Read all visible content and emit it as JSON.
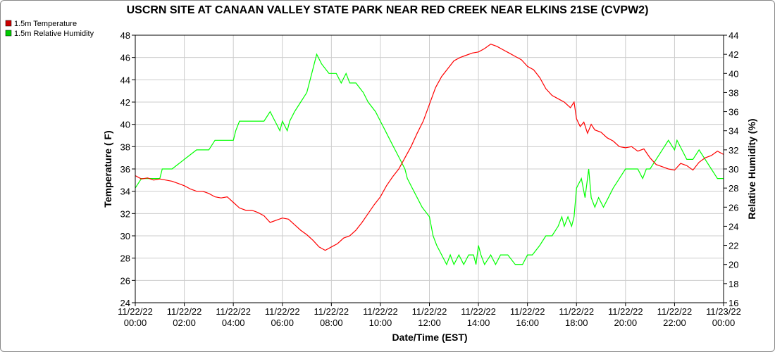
{
  "chart_data": {
    "type": "line",
    "title": "USCRN SITE AT CANAAN VALLEY STATE PARK NEAR RED CREEK NEAR ELKINS 21SE (CVPW2)",
    "xlabel": "Date/Time (EST)",
    "ylabel_left": "Temperature ( F)",
    "ylabel_right": "Relative Humidity (%)",
    "xlim_hours": [
      0,
      24
    ],
    "ylim_left": [
      24,
      48
    ],
    "ylim_right": [
      16,
      44
    ],
    "yticks_left": [
      24,
      26,
      28,
      30,
      32,
      34,
      36,
      38,
      40,
      42,
      44,
      46,
      48
    ],
    "yticks_right": [
      16,
      18,
      20,
      22,
      24,
      26,
      28,
      30,
      32,
      34,
      36,
      38,
      40,
      42,
      44
    ],
    "x_ticks": [
      {
        "hour": 0,
        "date": "11/22/22",
        "time": "00:00"
      },
      {
        "hour": 2,
        "date": "11/22/22",
        "time": "02:00"
      },
      {
        "hour": 4,
        "date": "11/22/22",
        "time": "04:00"
      },
      {
        "hour": 6,
        "date": "11/22/22",
        "time": "06:00"
      },
      {
        "hour": 8,
        "date": "11/22/22",
        "time": "08:00"
      },
      {
        "hour": 10,
        "date": "11/22/22",
        "time": "10:00"
      },
      {
        "hour": 12,
        "date": "11/22/22",
        "time": "12:00"
      },
      {
        "hour": 14,
        "date": "11/22/22",
        "time": "14:00"
      },
      {
        "hour": 16,
        "date": "11/22/22",
        "time": "16:00"
      },
      {
        "hour": 18,
        "date": "11/22/22",
        "time": "18:00"
      },
      {
        "hour": 20,
        "date": "11/22/22",
        "time": "20:00"
      },
      {
        "hour": 22,
        "date": "11/22/22",
        "time": "22:00"
      },
      {
        "hour": 24,
        "date": "11/23/22",
        "time": "00:00"
      }
    ],
    "grid": true,
    "legend_position": "top-left",
    "series": [
      {
        "name": "1.5m Temperature",
        "axis": "left",
        "color": "#ff0000",
        "legend_color": "#cc0000",
        "points": [
          [
            0,
            35.4
          ],
          [
            0.25,
            35.1
          ],
          [
            0.5,
            35.2
          ],
          [
            0.75,
            35.0
          ],
          [
            1.0,
            35.1
          ],
          [
            1.25,
            35.0
          ],
          [
            1.5,
            34.9
          ],
          [
            1.75,
            34.7
          ],
          [
            2.0,
            34.5
          ],
          [
            2.25,
            34.2
          ],
          [
            2.5,
            34.0
          ],
          [
            2.75,
            34.0
          ],
          [
            3.0,
            33.8
          ],
          [
            3.25,
            33.5
          ],
          [
            3.5,
            33.4
          ],
          [
            3.75,
            33.5
          ],
          [
            4.0,
            33.0
          ],
          [
            4.25,
            32.5
          ],
          [
            4.5,
            32.3
          ],
          [
            4.75,
            32.3
          ],
          [
            5.0,
            32.1
          ],
          [
            5.25,
            31.8
          ],
          [
            5.5,
            31.2
          ],
          [
            5.75,
            31.4
          ],
          [
            6.0,
            31.6
          ],
          [
            6.25,
            31.5
          ],
          [
            6.5,
            31.0
          ],
          [
            6.75,
            30.5
          ],
          [
            7.0,
            30.1
          ],
          [
            7.25,
            29.6
          ],
          [
            7.5,
            29.0
          ],
          [
            7.75,
            28.7
          ],
          [
            8.0,
            29.0
          ],
          [
            8.25,
            29.3
          ],
          [
            8.5,
            29.8
          ],
          [
            8.75,
            30.0
          ],
          [
            9.0,
            30.5
          ],
          [
            9.25,
            31.2
          ],
          [
            9.5,
            32.0
          ],
          [
            9.75,
            32.8
          ],
          [
            10.0,
            33.5
          ],
          [
            10.25,
            34.5
          ],
          [
            10.5,
            35.3
          ],
          [
            10.75,
            36.0
          ],
          [
            11.0,
            37.0
          ],
          [
            11.25,
            38.0
          ],
          [
            11.5,
            39.2
          ],
          [
            11.75,
            40.3
          ],
          [
            12.0,
            41.8
          ],
          [
            12.25,
            43.3
          ],
          [
            12.5,
            44.3
          ],
          [
            12.75,
            45.0
          ],
          [
            13.0,
            45.7
          ],
          [
            13.25,
            46.0
          ],
          [
            13.5,
            46.2
          ],
          [
            13.75,
            46.4
          ],
          [
            14.0,
            46.5
          ],
          [
            14.25,
            46.8
          ],
          [
            14.5,
            47.2
          ],
          [
            14.75,
            47.0
          ],
          [
            15.0,
            46.7
          ],
          [
            15.25,
            46.4
          ],
          [
            15.5,
            46.1
          ],
          [
            15.75,
            45.8
          ],
          [
            16.0,
            45.2
          ],
          [
            16.25,
            44.9
          ],
          [
            16.5,
            44.2
          ],
          [
            16.75,
            43.2
          ],
          [
            17.0,
            42.6
          ],
          [
            17.25,
            42.3
          ],
          [
            17.5,
            42.0
          ],
          [
            17.75,
            41.5
          ],
          [
            17.9,
            42.0
          ],
          [
            18.0,
            40.5
          ],
          [
            18.15,
            39.8
          ],
          [
            18.3,
            40.2
          ],
          [
            18.45,
            39.2
          ],
          [
            18.6,
            40.0
          ],
          [
            18.75,
            39.5
          ],
          [
            19.0,
            39.3
          ],
          [
            19.25,
            38.8
          ],
          [
            19.5,
            38.5
          ],
          [
            19.75,
            38.0
          ],
          [
            20.0,
            37.9
          ],
          [
            20.25,
            38.0
          ],
          [
            20.5,
            37.6
          ],
          [
            20.75,
            37.8
          ],
          [
            21.0,
            37.0
          ],
          [
            21.25,
            36.4
          ],
          [
            21.5,
            36.2
          ],
          [
            21.75,
            36.0
          ],
          [
            22.0,
            35.9
          ],
          [
            22.25,
            36.5
          ],
          [
            22.5,
            36.3
          ],
          [
            22.75,
            35.9
          ],
          [
            23.0,
            36.6
          ],
          [
            23.25,
            37.0
          ],
          [
            23.5,
            37.2
          ],
          [
            23.75,
            37.6
          ],
          [
            24.0,
            37.3
          ]
        ]
      },
      {
        "name": "1.5m Relative Humidity",
        "axis": "right",
        "color": "#00ff00",
        "legend_color": "#00cc00",
        "points": [
          [
            0,
            28
          ],
          [
            0.25,
            29
          ],
          [
            0.5,
            29
          ],
          [
            0.75,
            29
          ],
          [
            1.0,
            29
          ],
          [
            1.1,
            30
          ],
          [
            1.5,
            30
          ],
          [
            2.0,
            31
          ],
          [
            2.5,
            32
          ],
          [
            3.0,
            32
          ],
          [
            3.25,
            33
          ],
          [
            4.0,
            33
          ],
          [
            4.1,
            34
          ],
          [
            4.25,
            35
          ],
          [
            4.5,
            35
          ],
          [
            5.0,
            35
          ],
          [
            5.25,
            35
          ],
          [
            5.5,
            36
          ],
          [
            5.7,
            35
          ],
          [
            5.9,
            34
          ],
          [
            6.0,
            35
          ],
          [
            6.2,
            34
          ],
          [
            6.3,
            35
          ],
          [
            6.5,
            36
          ],
          [
            6.75,
            37
          ],
          [
            7.0,
            38
          ],
          [
            7.2,
            40
          ],
          [
            7.4,
            42
          ],
          [
            7.6,
            41
          ],
          [
            7.9,
            40
          ],
          [
            8.2,
            40
          ],
          [
            8.4,
            39
          ],
          [
            8.6,
            40
          ],
          [
            8.75,
            39
          ],
          [
            9.0,
            39
          ],
          [
            9.3,
            38
          ],
          [
            9.5,
            37
          ],
          [
            9.8,
            36
          ],
          [
            10.0,
            35
          ],
          [
            10.2,
            34
          ],
          [
            10.4,
            33
          ],
          [
            10.6,
            32
          ],
          [
            10.8,
            31
          ],
          [
            11.0,
            30
          ],
          [
            11.1,
            29
          ],
          [
            11.3,
            28
          ],
          [
            11.5,
            27
          ],
          [
            11.7,
            26
          ],
          [
            12.0,
            25
          ],
          [
            12.15,
            23
          ],
          [
            12.3,
            22
          ],
          [
            12.5,
            21
          ],
          [
            12.7,
            20
          ],
          [
            12.85,
            21
          ],
          [
            13.0,
            20
          ],
          [
            13.2,
            21
          ],
          [
            13.4,
            20
          ],
          [
            13.6,
            21
          ],
          [
            13.8,
            21
          ],
          [
            13.9,
            20
          ],
          [
            14.0,
            22
          ],
          [
            14.1,
            21
          ],
          [
            14.25,
            20
          ],
          [
            14.5,
            21
          ],
          [
            14.7,
            20
          ],
          [
            14.9,
            21
          ],
          [
            15.2,
            21
          ],
          [
            15.5,
            20
          ],
          [
            15.8,
            20
          ],
          [
            16.0,
            21
          ],
          [
            16.2,
            21
          ],
          [
            16.5,
            22
          ],
          [
            16.75,
            23
          ],
          [
            17.0,
            23
          ],
          [
            17.25,
            24
          ],
          [
            17.4,
            25
          ],
          [
            17.5,
            24
          ],
          [
            17.65,
            25
          ],
          [
            17.8,
            24
          ],
          [
            17.9,
            25
          ],
          [
            18.0,
            28
          ],
          [
            18.2,
            29
          ],
          [
            18.35,
            27
          ],
          [
            18.5,
            30
          ],
          [
            18.6,
            27
          ],
          [
            18.75,
            26
          ],
          [
            18.9,
            27
          ],
          [
            19.1,
            26
          ],
          [
            19.3,
            27
          ],
          [
            19.5,
            28
          ],
          [
            19.75,
            29
          ],
          [
            20.0,
            30
          ],
          [
            20.3,
            30
          ],
          [
            20.5,
            30
          ],
          [
            20.7,
            29
          ],
          [
            20.85,
            30
          ],
          [
            21.0,
            30
          ],
          [
            21.25,
            31
          ],
          [
            21.5,
            32
          ],
          [
            21.75,
            33
          ],
          [
            22.0,
            32
          ],
          [
            22.1,
            33
          ],
          [
            22.3,
            32
          ],
          [
            22.5,
            31
          ],
          [
            22.75,
            31
          ],
          [
            23.0,
            32
          ],
          [
            23.25,
            31
          ],
          [
            23.5,
            30
          ],
          [
            23.75,
            29
          ],
          [
            24.0,
            29
          ]
        ]
      }
    ]
  }
}
